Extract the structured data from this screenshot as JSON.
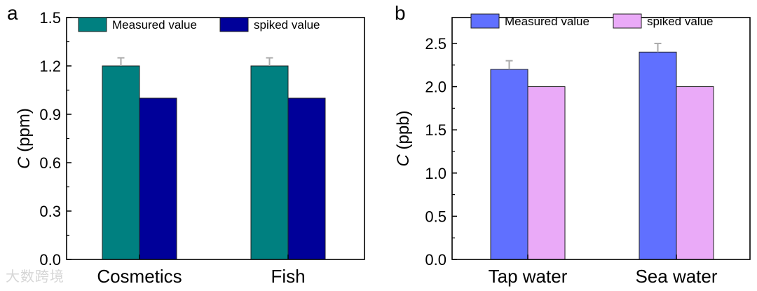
{
  "chart_data": [
    {
      "panel": "a",
      "type": "bar",
      "ylabel_italic": "C",
      "ylabel_rest": " (ppm)",
      "ylim": [
        0,
        1.5
      ],
      "yticks": [
        "0.0",
        "0.3",
        "0.6",
        "0.9",
        "1.2",
        "1.5"
      ],
      "categories": [
        "Cosmetics",
        "Fish"
      ],
      "series": [
        {
          "name": "Measured value",
          "values": [
            1.2,
            1.2
          ],
          "errors": [
            0.05,
            0.05
          ],
          "color": "#008080"
        },
        {
          "name": "spiked value",
          "values": [
            1.0,
            1.0
          ],
          "errors": [
            0,
            0
          ],
          "color": "#000099"
        }
      ]
    },
    {
      "panel": "b",
      "type": "bar",
      "ylabel_italic": "C",
      "ylabel_rest": " (ppb)",
      "ylim": [
        0,
        2.8
      ],
      "yticks": [
        "0.0",
        "0.5",
        "1.0",
        "1.5",
        "2.0",
        "2.5"
      ],
      "categories": [
        "Tap water",
        "Sea water"
      ],
      "series": [
        {
          "name": "Measured value",
          "values": [
            2.2,
            2.4
          ],
          "errors": [
            0.1,
            0.1
          ],
          "color": "#6070ff"
        },
        {
          "name": "spiked value",
          "values": [
            2.0,
            2.0
          ],
          "errors": [
            0,
            0
          ],
          "color": "#eaaaf8"
        }
      ]
    }
  ],
  "watermark": "大数跨境"
}
